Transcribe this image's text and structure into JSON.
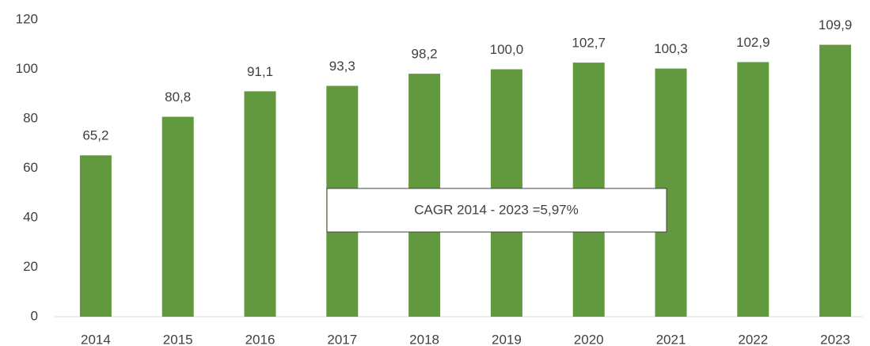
{
  "chart_data": {
    "type": "bar",
    "categories": [
      "2014",
      "2015",
      "2016",
      "2017",
      "2018",
      "2019",
      "2020",
      "2021",
      "2022",
      "2023"
    ],
    "values": [
      65.2,
      80.8,
      91.1,
      93.3,
      98.2,
      100.0,
      102.7,
      100.3,
      102.9,
      109.9
    ],
    "value_labels": [
      "65,2",
      "80,8",
      "91,1",
      "93,3",
      "98,2",
      "100,0",
      "102,7",
      "100,3",
      "102,9",
      "109,9"
    ],
    "color": "#62993e",
    "ylim": [
      0,
      120
    ],
    "yticks": [
      0,
      20,
      40,
      60,
      80,
      100,
      120
    ],
    "grid": false,
    "annotation": "CAGR 2014 - 2023 =5,97%"
  }
}
